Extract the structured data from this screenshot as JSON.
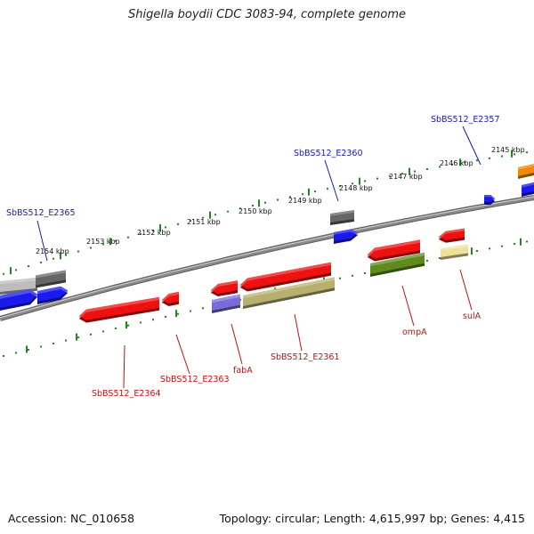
{
  "title": "Shigella boydii CDC 3083-94, complete genome",
  "footer": {
    "accession": "Accession: NC_010658",
    "summary": "Topology: circular; Length: 4,615,997 bp; Genes: 4,415"
  },
  "colors": {
    "backbone": "#8a8a8a",
    "tick": "#1e8a1e",
    "outer_label": "#1a1aa6",
    "inner_label": "#c01010",
    "red_feature": "#ee1111",
    "blue_feature": "#1a1aee",
    "gray_feature": "#666666",
    "light_gray_feature": "#bdbdbd",
    "orange_feature": "#ee8a00",
    "olive_feature": "#5e8a1e",
    "khaki_feature": "#b8b070",
    "pale_yellow_feature": "#eee29a",
    "purple_feature": "#7a6cd8"
  },
  "scale_ticks": [
    "2145 kbp",
    "2146 kbp",
    "2147 kbp",
    "2148 kbp",
    "2149 kbp",
    "2150 kbp",
    "2151 kbp",
    "2152 kbp",
    "2153 kbp",
    "2154 kbp"
  ],
  "outer_labels": [
    "SbBS512_E2357",
    "SbBS512_E2360",
    "SbBS512_E2365"
  ],
  "inner_labels": [
    "sulA",
    "ompA",
    "SbBS512_E2361",
    "fabA",
    "SbBS512_E2363",
    "SbBS512_E2364"
  ]
}
